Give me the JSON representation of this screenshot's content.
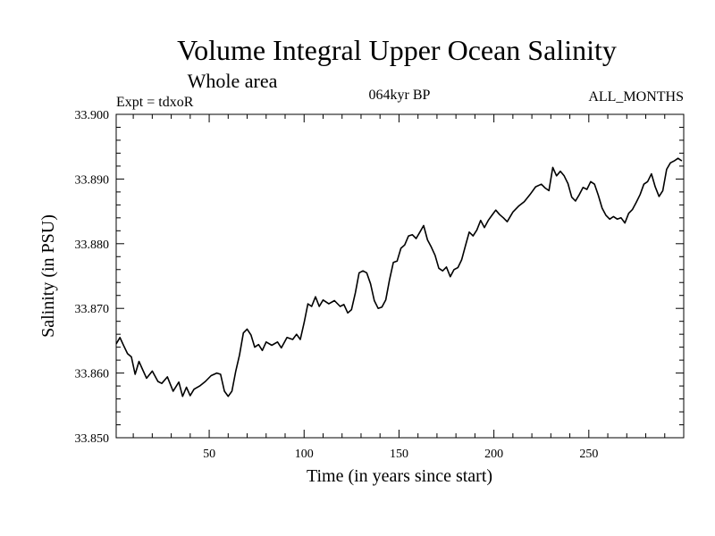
{
  "chart_data": {
    "type": "line",
    "title": "Volume Integral Upper Ocean Salinity",
    "subtitle": "Whole area",
    "header_left": "Expt = tdxoR",
    "header_center": "064kyr BP",
    "header_right": "ALL_MONTHS",
    "xlabel": "Time (in years since start)",
    "ylabel": "Salinity (in PSU)",
    "xlim": [
      1,
      300
    ],
    "ylim": [
      33.85,
      33.9
    ],
    "x_ticks": [
      50,
      100,
      150,
      200,
      250
    ],
    "x_tick_labels": [
      "50",
      "100",
      "150",
      "200",
      "250"
    ],
    "y_ticks": [
      33.85,
      33.86,
      33.87,
      33.88,
      33.89,
      33.9
    ],
    "y_tick_labels": [
      "33.850",
      "33.860",
      "33.870",
      "33.880",
      "33.890",
      "33.900"
    ],
    "x_minor_step": 10,
    "y_minor_step": 0.002,
    "grid": false,
    "line_color": "#000000",
    "series": [
      {
        "x": [
          1,
          3,
          5,
          7,
          9,
          11,
          13,
          15,
          17,
          20,
          23,
          25,
          28,
          31,
          34,
          36,
          38,
          40,
          42,
          45,
          48,
          51,
          54,
          56,
          58,
          60,
          62,
          64,
          66,
          68,
          70,
          72,
          74,
          76,
          78,
          80,
          83,
          86,
          88,
          91,
          94,
          96,
          98,
          100,
          102,
          104,
          106,
          108,
          110,
          113,
          116,
          119,
          121,
          123,
          125,
          127,
          129,
          131,
          133,
          135,
          137,
          139,
          141,
          143,
          145,
          147,
          149,
          151,
          153,
          155,
          157,
          159,
          161,
          163,
          165,
          167,
          169,
          171,
          173,
          175,
          177,
          179,
          181,
          183,
          185,
          187,
          189,
          191,
          193,
          195,
          197,
          199,
          201,
          203,
          205,
          207,
          210,
          213,
          216,
          219,
          222,
          225,
          227,
          229,
          231,
          233,
          235,
          237,
          239,
          241,
          243,
          245,
          247,
          249,
          251,
          253,
          255,
          257,
          259,
          261,
          263,
          265,
          267,
          269,
          271,
          273,
          275,
          277,
          279,
          281,
          283,
          285,
          287,
          289,
          291,
          293,
          295,
          297,
          299
        ],
        "y": [
          33.8645,
          33.8655,
          33.8642,
          33.863,
          33.8625,
          33.8598,
          33.8618,
          33.8605,
          33.8592,
          33.8603,
          33.8587,
          33.8584,
          33.8594,
          33.8572,
          33.8586,
          33.8564,
          33.8578,
          33.8565,
          33.8575,
          33.858,
          33.8587,
          33.8596,
          33.86,
          33.8598,
          33.8572,
          33.8564,
          33.8572,
          33.8603,
          33.8628,
          33.8662,
          33.8668,
          33.8659,
          33.864,
          33.8644,
          33.8635,
          33.8648,
          33.8643,
          33.8648,
          33.8639,
          33.8655,
          33.8652,
          33.866,
          33.8652,
          33.8678,
          33.8707,
          33.8703,
          33.8718,
          33.8703,
          33.8713,
          33.8707,
          33.8712,
          33.8703,
          33.8706,
          33.8693,
          33.8698,
          33.8724,
          33.8755,
          33.8758,
          33.8755,
          33.8738,
          33.8712,
          33.87,
          33.8702,
          33.8713,
          33.8744,
          33.8771,
          33.8773,
          33.8793,
          33.8798,
          33.8812,
          33.8814,
          33.8808,
          33.8818,
          33.8828,
          33.8806,
          33.8795,
          33.8782,
          33.8762,
          33.8758,
          33.8764,
          33.8749,
          33.876,
          33.8763,
          33.8775,
          33.8797,
          33.8818,
          33.8812,
          33.8821,
          33.8836,
          33.8825,
          33.8836,
          33.8844,
          33.8852,
          33.8845,
          33.884,
          33.8834,
          33.8849,
          33.8858,
          33.8865,
          33.8876,
          33.8888,
          33.8892,
          33.8886,
          33.8882,
          33.8918,
          33.8905,
          33.8912,
          33.8905,
          33.8893,
          33.8872,
          33.8866,
          33.8876,
          33.8887,
          33.8884,
          33.8896,
          33.8892,
          33.8875,
          33.8855,
          33.8844,
          33.8838,
          33.8842,
          33.8838,
          33.884,
          33.8832,
          33.8847,
          33.8853,
          33.8864,
          33.8876,
          33.8892,
          33.8896,
          33.8908,
          33.8888,
          33.8873,
          33.8882,
          33.8915,
          33.8925,
          33.8928,
          33.8932,
          33.8928
        ]
      }
    ]
  }
}
